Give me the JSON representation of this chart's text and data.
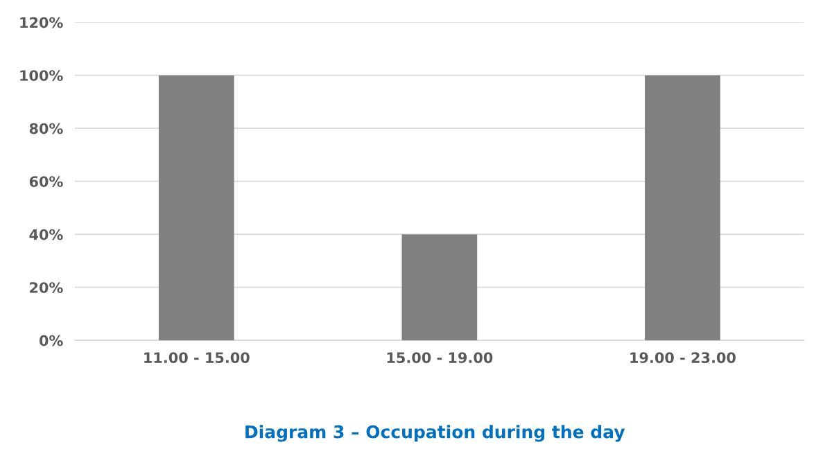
{
  "chart_data": {
    "type": "bar",
    "title": "Diagram 3 – Occupation during the day",
    "categories": [
      "11.00 - 15.00",
      "15.00 - 19.00",
      "19.00 - 23.00"
    ],
    "values": [
      100,
      40,
      100
    ],
    "color": "#808080",
    "ylim": [
      0,
      120
    ],
    "yticks": [
      {
        "value": 0,
        "label": "0%"
      },
      {
        "value": 20,
        "label": "20%"
      },
      {
        "value": 40,
        "label": "40%"
      },
      {
        "value": 60,
        "label": "60%"
      },
      {
        "value": 80,
        "label": "80%"
      },
      {
        "value": 100,
        "label": "100%"
      },
      {
        "value": 120,
        "label": "120%"
      }
    ],
    "grid": "y",
    "legend": false
  }
}
